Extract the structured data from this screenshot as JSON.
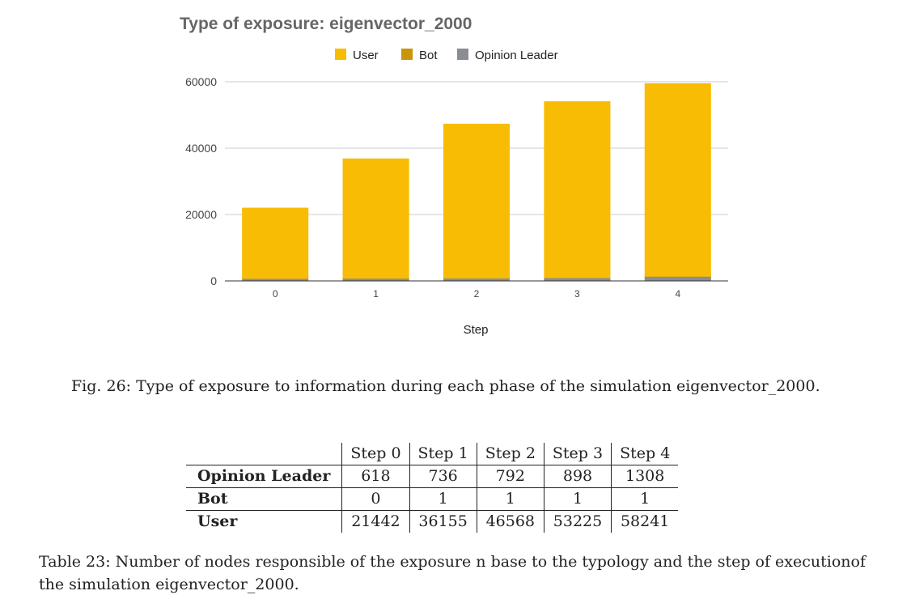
{
  "chart_data": {
    "type": "bar",
    "stacked": true,
    "title": "Type of exposure: eigenvector_2000",
    "xlabel": "Step",
    "ylabel": "",
    "categories": [
      "0",
      "1",
      "2",
      "3",
      "4"
    ],
    "series": [
      {
        "name": "Opinion Leader",
        "values": [
          618,
          736,
          792,
          898,
          1308
        ],
        "color": "#8a8d93"
      },
      {
        "name": "Bot",
        "values": [
          0,
          1,
          1,
          1,
          1
        ],
        "color": "#c9950a"
      },
      {
        "name": "User",
        "values": [
          21442,
          36155,
          46568,
          53225,
          58241
        ],
        "color": "#f9bc04"
      }
    ],
    "legend": [
      "User",
      "Bot",
      "Opinion Leader"
    ],
    "legend_position": "top",
    "yticks": [
      0,
      20000,
      40000,
      60000
    ],
    "ylim": [
      0,
      60000
    ],
    "grid": true
  },
  "figure_caption": "Fig. 26: Type of exposure to information during each phase of the simulation eigenvector_2000.",
  "table": {
    "headers": [
      "Step 0",
      "Step 1",
      "Step 2",
      "Step 3",
      "Step 4"
    ],
    "rows": [
      {
        "label": "Opinion Leader",
        "values": [
          "618",
          "736",
          "792",
          "898",
          "1308"
        ]
      },
      {
        "label": "Bot",
        "values": [
          "0",
          "1",
          "1",
          "1",
          "1"
        ]
      },
      {
        "label": "User",
        "values": [
          "21442",
          "36155",
          "46568",
          "53225",
          "58241"
        ]
      }
    ]
  },
  "table_caption": "Table 23: Number of nodes responsible of the exposure n base to the typology and the step of executionof the simulation eigenvector_2000."
}
